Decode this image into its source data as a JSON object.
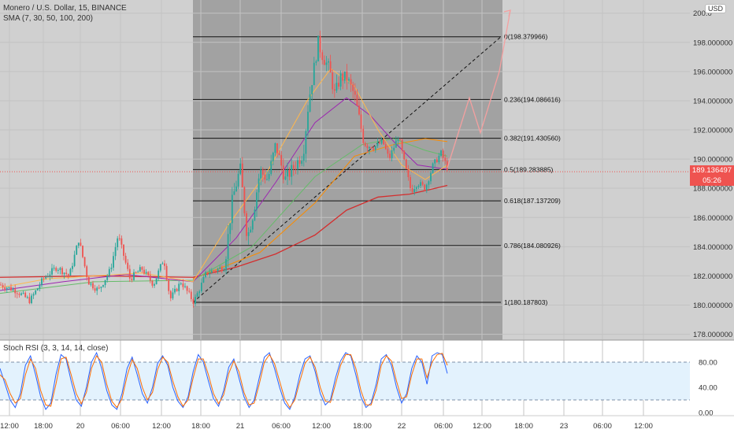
{
  "header": {
    "symbol_line": "Monero / U.S. Dollar, 15, BINANCE",
    "sma_line": "SMA (7, 30, 50, 100, 200)",
    "currency": "USD"
  },
  "price_tag": {
    "value": "189.136497",
    "countdown": "05:26"
  },
  "chart_data": [
    {
      "type": "candlestick",
      "title": "Monero / U.S. Dollar, 15, BINANCE",
      "ylim": [
        177.6,
        200.2
      ],
      "y_ticks": [
        "178.000000",
        "180.000000",
        "182.000000",
        "184.000000",
        "186.000000",
        "188.000000",
        "190.000000",
        "192.000000",
        "194.000000",
        "196.000000",
        "198.000000",
        "200.0"
      ],
      "x_ticks": [
        "12:00",
        "18:00",
        "20",
        "06:00",
        "12:00",
        "18:00",
        "21",
        "06:00",
        "12:00",
        "18:00",
        "22",
        "06:00",
        "12:00",
        "18:00",
        "23",
        "06:00",
        "12:00"
      ],
      "current_price": 189.136497,
      "fibonacci": [
        {
          "label": "0(198.379966)",
          "ratio": 0,
          "price": 198.379966
        },
        {
          "label": "0.236(194.086616)",
          "ratio": 0.236,
          "price": 194.086616
        },
        {
          "label": "0.382(191.430560)",
          "ratio": 0.382,
          "price": 191.43056
        },
        {
          "label": "0.5(189.283885)",
          "ratio": 0.5,
          "price": 189.283885
        },
        {
          "label": "0.618(187.137209)",
          "ratio": 0.618,
          "price": 187.137209
        },
        {
          "label": "0.786(184.080926)",
          "ratio": 0.786,
          "price": 184.080926
        },
        {
          "label": "1(180.187803)",
          "ratio": 1,
          "price": 180.187803
        }
      ],
      "series_path": [
        [
          0,
          181.4
        ],
        [
          20,
          181.0
        ],
        [
          38,
          180.3
        ],
        [
          55,
          181.8
        ],
        [
          72,
          182.6
        ],
        [
          88,
          182.0
        ],
        [
          100,
          184.5
        ],
        [
          112,
          181.6
        ],
        [
          125,
          181.0
        ],
        [
          140,
          182.4
        ],
        [
          150,
          184.8
        ],
        [
          165,
          181.8
        ],
        [
          180,
          182.5
        ],
        [
          195,
          181.4
        ],
        [
          208,
          183.2
        ],
        [
          216,
          180.4
        ],
        [
          230,
          181.6
        ],
        [
          246,
          180.2
        ],
        [
          262,
          182.2
        ],
        [
          285,
          182.6
        ],
        [
          295,
          187.2
        ],
        [
          305,
          189.4
        ],
        [
          314,
          184.6
        ],
        [
          322,
          186.4
        ],
        [
          330,
          189.2
        ],
        [
          340,
          188.6
        ],
        [
          350,
          191.0
        ],
        [
          362,
          188.6
        ],
        [
          375,
          189.6
        ],
        [
          385,
          190.4
        ],
        [
          392,
          194.0
        ],
        [
          398,
          196.0
        ],
        [
          404,
          198.0
        ],
        [
          410,
          197.0
        ],
        [
          418,
          196.2
        ],
        [
          425,
          194.4
        ],
        [
          432,
          195.6
        ],
        [
          440,
          195.6
        ],
        [
          450,
          194.4
        ],
        [
          462,
          191.2
        ],
        [
          474,
          190.8
        ],
        [
          486,
          191.2
        ],
        [
          494,
          190.0
        ],
        [
          506,
          191.6
        ],
        [
          514,
          189.6
        ],
        [
          522,
          187.8
        ],
        [
          530,
          188.4
        ],
        [
          540,
          188.0
        ],
        [
          550,
          189.6
        ],
        [
          560,
          190.4
        ],
        [
          568,
          189.4
        ]
      ],
      "projection": [
        [
          568,
          189.4
        ],
        [
          596,
          194.2
        ],
        [
          610,
          191.8
        ],
        [
          634,
          196.0
        ],
        [
          648,
          200.2
        ]
      ],
      "sma_fast": [
        [
          0,
          181.2
        ],
        [
          60,
          181.8
        ],
        [
          120,
          182.0
        ],
        [
          180,
          182.2
        ],
        [
          245,
          181.6
        ],
        [
          290,
          185.5
        ],
        [
          340,
          189.2
        ],
        [
          390,
          194.0
        ],
        [
          420,
          196.2
        ],
        [
          450,
          195.0
        ],
        [
          480,
          192.0
        ],
        [
          510,
          189.6
        ],
        [
          540,
          188.6
        ],
        [
          568,
          189.6
        ]
      ],
      "sma_mid": [
        [
          0,
          181.0
        ],
        [
          80,
          181.6
        ],
        [
          160,
          182.1
        ],
        [
          245,
          181.6
        ],
        [
          300,
          184.6
        ],
        [
          350,
          188.4
        ],
        [
          400,
          192.5
        ],
        [
          440,
          194.2
        ],
        [
          470,
          193.0
        ],
        [
          500,
          191.2
        ],
        [
          530,
          189.6
        ],
        [
          568,
          189.3
        ]
      ],
      "sma_slow": [
        [
          0,
          180.8
        ],
        [
          120,
          181.6
        ],
        [
          245,
          181.7
        ],
        [
          320,
          184.0
        ],
        [
          400,
          188.8
        ],
        [
          460,
          191.0
        ],
        [
          500,
          191.4
        ],
        [
          540,
          190.6
        ],
        [
          568,
          190.2
        ]
      ],
      "sma_long": [
        [
          245,
          181.8
        ],
        [
          330,
          183.6
        ],
        [
          400,
          187.0
        ],
        [
          450,
          190.2
        ],
        [
          500,
          191.0
        ],
        [
          540,
          191.4
        ],
        [
          568,
          191.2
        ]
      ],
      "sma_200": [
        [
          0,
          181.9
        ],
        [
          120,
          182.0
        ],
        [
          245,
          181.9
        ],
        [
          300,
          182.6
        ],
        [
          350,
          183.5
        ],
        [
          400,
          184.8
        ],
        [
          440,
          186.5
        ],
        [
          480,
          187.4
        ],
        [
          520,
          187.6
        ],
        [
          545,
          187.9
        ],
        [
          568,
          188.2
        ]
      ]
    },
    {
      "type": "line",
      "title": "Stoch RSI (3, 3, 14, 14, close)",
      "ylim": [
        -5,
        105
      ],
      "y_ticks": [
        "80.00",
        "40.00",
        "0.00"
      ],
      "band": [
        20,
        80
      ],
      "series": [
        {
          "values": [
            70,
            45,
            20,
            8,
            30,
            75,
            90,
            60,
            25,
            5,
            15,
            60,
            92,
            85,
            50,
            20,
            10,
            40,
            80,
            95,
            70,
            35,
            12,
            5,
            30,
            70,
            88,
            60,
            30,
            15,
            40,
            78,
            90,
            75,
            40,
            18,
            8,
            25,
            65,
            92,
            80,
            50,
            22,
            10,
            35,
            72,
            85,
            55,
            25,
            8,
            20,
            55,
            88,
            95,
            70,
            40,
            15,
            5,
            25,
            60,
            85,
            90,
            65,
            30,
            12,
            20,
            55,
            82,
            95,
            90,
            60,
            25,
            8,
            15,
            45,
            85,
            92,
            75,
            40,
            15,
            30,
            70,
            90,
            80,
            45,
            90,
            95,
            92,
            62
          ]
        },
        {
          "values": [
            60,
            52,
            30,
            15,
            22,
            60,
            85,
            70,
            35,
            12,
            10,
            45,
            85,
            88,
            60,
            30,
            14,
            32,
            70,
            90,
            80,
            45,
            18,
            8,
            22,
            58,
            84,
            70,
            40,
            20,
            32,
            68,
            88,
            80,
            50,
            25,
            10,
            20,
            55,
            85,
            85,
            60,
            30,
            14,
            28,
            62,
            82,
            65,
            32,
            12,
            15,
            45,
            80,
            92,
            78,
            50,
            22,
            8,
            20,
            50,
            78,
            88,
            72,
            40,
            18,
            16,
            45,
            75,
            92,
            92,
            70,
            35,
            12,
            12,
            36,
            75,
            90,
            82,
            50,
            22,
            25,
            60,
            85,
            85,
            55,
            80,
            92,
            94,
            75
          ]
        }
      ]
    }
  ],
  "colors": {
    "candle_up": "#26a69a",
    "candle_down": "#ef5350",
    "projection": "#f4a0a0",
    "sma_fast": "#ffb74d",
    "sma_mid": "#9c27b0",
    "sma_slow": "#66bb6a",
    "sma_long": "#fb8c00",
    "sma_200": "#d32f2f",
    "stoch_k": "#2962ff",
    "stoch_d": "#ff6d00"
  }
}
